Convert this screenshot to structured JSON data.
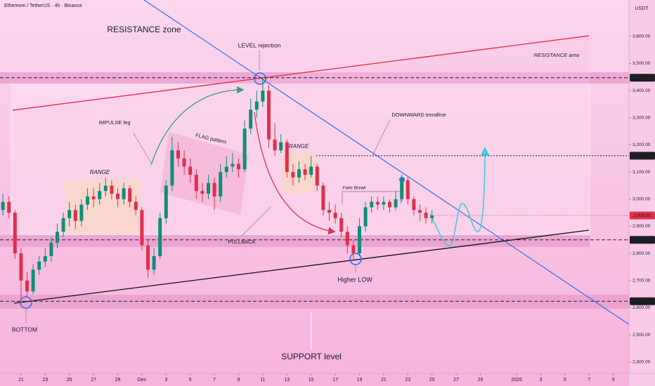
{
  "chart_data": {
    "type": "candlestick",
    "title": "Ethereum / TetherUS · 4h · Binance",
    "y_axis_label": "USDT",
    "up_color": "#0e8f78",
    "down_color": "#e0304a",
    "xlim": [
      19.26,
      71.3
    ],
    "ylim": [
      2358,
      3734
    ],
    "xticks": [
      21,
      23,
      25,
      27,
      29,
      {
        "value": 31,
        "label": "Dec"
      },
      {
        "value": 33,
        "label": "3"
      },
      {
        "value": 35,
        "label": "5"
      },
      {
        "value": 37,
        "label": "7"
      },
      {
        "value": 39,
        "label": "9"
      },
      {
        "value": 41,
        "label": "11"
      },
      {
        "value": 43,
        "label": "13"
      },
      {
        "value": 45,
        "label": "15"
      },
      {
        "value": 47,
        "label": "17"
      },
      {
        "value": 49,
        "label": "19"
      },
      {
        "value": 51,
        "label": "21"
      },
      {
        "value": 53,
        "label": "23"
      },
      {
        "value": 55,
        "label": "25"
      },
      {
        "value": 57,
        "label": "27"
      },
      {
        "value": 59,
        "label": "29"
      },
      {
        "value": 62,
        "label": "2026"
      },
      {
        "value": 64,
        "label": "3"
      },
      {
        "value": 66,
        "label": "5"
      },
      {
        "value": 68,
        "label": "7"
      },
      {
        "value": 70,
        "label": "9"
      }
    ],
    "yticks": [
      {
        "value": 2400,
        "label": "2,400.00"
      },
      {
        "value": 2500,
        "label": "2,500.00"
      },
      {
        "value": 2600,
        "label": "2,600.00"
      },
      {
        "value": 2700,
        "label": "2,700.00"
      },
      {
        "value": 2800,
        "label": "2,800.00"
      },
      {
        "value": 2900,
        "label": "2,900.00"
      },
      {
        "value": 3000,
        "label": "3,000.00"
      },
      {
        "value": 3100,
        "label": "3,100.00"
      },
      {
        "value": 3200,
        "label": "3,200.00"
      },
      {
        "value": 3300,
        "label": "3,300.00"
      },
      {
        "value": 3400,
        "label": "3,400.00"
      },
      {
        "value": 3500,
        "label": "3,500.00"
      },
      {
        "value": 3600,
        "label": "3,600.00"
      }
    ],
    "price_lines": [
      {
        "value": 3447.44,
        "label": "3,447.44",
        "color": "#1e1e24"
      },
      {
        "value": 3160,
        "label": "3,160.00",
        "color": "#1e1e24"
      },
      {
        "value": 2939.92,
        "label": "2,939.92",
        "color": "#e0304a"
      },
      {
        "value": 2850,
        "label": "2,850.00",
        "color": "#1e1e24"
      },
      {
        "value": 2623.71,
        "label": "2,623.71",
        "color": "#1e1e24"
      }
    ],
    "x": [
      19.5,
      20,
      20.5,
      21,
      21.5,
      22,
      22.5,
      23,
      23.5,
      24,
      24.5,
      25,
      25.5,
      26,
      26.5,
      27,
      27.5,
      28,
      28.5,
      29,
      29.5,
      30,
      30.5,
      31,
      31.5,
      32,
      32.5,
      33,
      33.5,
      34,
      34.5,
      35,
      35.5,
      36,
      36.5,
      37,
      37.5,
      38,
      38.5,
      39,
      39.5,
      40,
      40.5,
      41,
      41.5,
      42,
      42.5,
      43,
      43.5,
      44,
      44.5,
      45,
      45.5,
      46,
      46.5,
      47,
      47.5,
      48,
      48.5,
      49,
      49.5,
      50,
      50.5,
      51,
      51.5,
      52,
      52.5,
      53,
      53.5,
      54,
      54.5,
      55
    ],
    "open": [
      2960,
      2990,
      2950,
      2800,
      2700,
      2660,
      2740,
      2770,
      2790,
      2840,
      2880,
      2930,
      2960,
      2920,
      2980,
      3010,
      3000,
      3030,
      3050,
      3020,
      3000,
      3040,
      2990,
      2960,
      2830,
      2740,
      2790,
      2930,
      3050,
      3180,
      3150,
      3120,
      3090,
      3030,
      3020,
      3060,
      3010,
      3100,
      3120,
      3130,
      3110,
      3260,
      3330,
      3360,
      3400,
      3220,
      3180,
      3210,
      3100,
      3080,
      3110,
      3090,
      3120,
      3050,
      2960,
      2950,
      2930,
      2880,
      2830,
      2800,
      2900,
      2970,
      2990,
      2980,
      2990,
      2970,
      3000,
      3070,
      3000,
      2960,
      2950,
      2930
    ],
    "high": [
      3020,
      3010,
      2960,
      2820,
      2730,
      2760,
      2790,
      2820,
      2860,
      2910,
      2950,
      2990,
      2980,
      3000,
      3040,
      3040,
      3060,
      3080,
      3070,
      3040,
      3060,
      3050,
      3010,
      2970,
      2850,
      2820,
      2950,
      3070,
      3230,
      3210,
      3180,
      3150,
      3110,
      3060,
      3090,
      3080,
      3130,
      3160,
      3170,
      3150,
      3290,
      3370,
      3400,
      3447,
      3420,
      3280,
      3240,
      3220,
      3130,
      3140,
      3130,
      3160,
      3130,
      3060,
      2990,
      2980,
      2950,
      2900,
      2850,
      2930,
      2990,
      3010,
      3010,
      3010,
      3000,
      3030,
      3090,
      3080,
      3010,
      2980,
      2970,
      2960
    ],
    "low": [
      2940,
      2930,
      2780,
      2620,
      2640,
      2650,
      2720,
      2750,
      2770,
      2820,
      2860,
      2900,
      2890,
      2900,
      2960,
      2970,
      2980,
      3010,
      3000,
      2970,
      2980,
      2970,
      2940,
      2810,
      2710,
      2720,
      2780,
      2910,
      3030,
      3120,
      3090,
      3060,
      3000,
      2990,
      3000,
      2960,
      2990,
      3080,
      3100,
      3080,
      3100,
      3240,
      3300,
      3340,
      3190,
      3160,
      3170,
      3080,
      3050,
      3060,
      3070,
      3080,
      3030,
      2940,
      2920,
      2910,
      2860,
      2800,
      2780,
      2790,
      2880,
      2950,
      2960,
      2960,
      2950,
      2960,
      2990,
      2980,
      2940,
      2920,
      2910,
      2910
    ],
    "close": [
      2990,
      2950,
      2800,
      2700,
      2660,
      2740,
      2770,
      2790,
      2840,
      2880,
      2930,
      2960,
      2920,
      2980,
      3010,
      3000,
      3030,
      3050,
      3020,
      3000,
      3040,
      2990,
      2960,
      2830,
      2740,
      2790,
      2930,
      3050,
      3180,
      3150,
      3120,
      3090,
      3030,
      3020,
      3060,
      3010,
      3100,
      3120,
      3130,
      3110,
      3260,
      3330,
      3360,
      3400,
      3220,
      3180,
      3210,
      3100,
      3080,
      3110,
      3090,
      3120,
      3050,
      2960,
      2950,
      2930,
      2880,
      2830,
      2800,
      2900,
      2970,
      2990,
      2980,
      2990,
      2970,
      3000,
      3070,
      3000,
      2960,
      2950,
      2930,
      2940
    ],
    "annotations": [
      "RESISTANCE zone",
      "LEVEL rejection",
      "RESISTANCE area",
      "IMPULSE leg",
      "FLAG pattern",
      "RANGE",
      "RANGE",
      "DOWNWARD trendline",
      "Fake Break",
      "PULLBACK",
      "Higher LOW",
      "BOTTOM",
      "SUPPORT level"
    ]
  }
}
